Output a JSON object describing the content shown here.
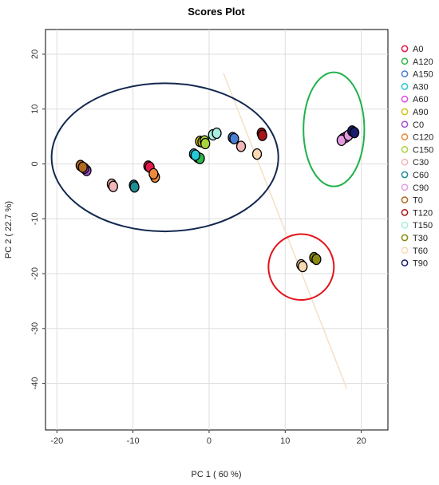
{
  "chart_data": {
    "type": "scatter",
    "title": "Scores Plot",
    "xlabel": "PC 1 ( 60 %)",
    "ylabel": "PC 2 ( 22.7 %)",
    "xlim": [
      -21.5,
      23.5
    ],
    "ylim": [
      -48.5,
      24.5
    ],
    "xticks": [
      -20,
      -10,
      0,
      10,
      20
    ],
    "yticks": [
      20,
      10,
      0,
      -10,
      -20,
      -30,
      -40
    ],
    "grid": true,
    "legend_position": "right",
    "series": [
      {
        "name": "A0",
        "color": "#e6194b",
        "points": [
          [
            -8.0,
            -0.4
          ],
          [
            -7.8,
            -0.6
          ]
        ]
      },
      {
        "name": "A120",
        "color": "#2db84d",
        "points": [
          [
            -1.5,
            1.2
          ],
          [
            -1.2,
            1.0
          ]
        ]
      },
      {
        "name": "A150",
        "color": "#4a7fd4",
        "points": [
          [
            3.1,
            4.8
          ],
          [
            3.3,
            4.6
          ]
        ]
      },
      {
        "name": "A30",
        "color": "#27c9d6",
        "points": [
          [
            -2.0,
            1.8
          ],
          [
            -1.8,
            1.6
          ]
        ]
      },
      {
        "name": "A60",
        "color": "#e14be0",
        "points": [
          [
            17.6,
            4.6
          ],
          [
            18.0,
            4.9
          ]
        ]
      },
      {
        "name": "A90",
        "color": "#d6c51c",
        "points": [
          [
            -1.2,
            4.1
          ],
          [
            -0.9,
            4.0
          ]
        ]
      },
      {
        "name": "C0",
        "color": "#a64ccf",
        "points": [
          [
            -16.1,
            -1.2
          ],
          [
            -16.4,
            -0.8
          ]
        ]
      },
      {
        "name": "C120",
        "color": "#f08b3b",
        "points": [
          [
            -7.1,
            -2.4
          ],
          [
            -7.3,
            -1.8
          ]
        ]
      },
      {
        "name": "C150",
        "color": "#a8d43b",
        "points": [
          [
            -0.6,
            4.2
          ],
          [
            -0.5,
            3.7
          ]
        ]
      },
      {
        "name": "C30",
        "color": "#f2b6b6",
        "points": [
          [
            -12.8,
            -3.7
          ],
          [
            -12.6,
            -4.1
          ],
          [
            4.2,
            3.2
          ]
        ]
      },
      {
        "name": "C60",
        "color": "#1f8e94",
        "points": [
          [
            -9.9,
            -3.9
          ],
          [
            -9.8,
            -4.2
          ]
        ]
      },
      {
        "name": "C90",
        "color": "#e59adf",
        "points": [
          [
            17.4,
            4.3
          ],
          [
            18.3,
            5.2
          ]
        ]
      },
      {
        "name": "T0",
        "color": "#b06a1e",
        "points": [
          [
            -16.9,
            -0.3
          ],
          [
            -16.6,
            -0.6
          ]
        ]
      },
      {
        "name": "T120",
        "color": "#a6161b",
        "points": [
          [
            6.9,
            5.6
          ],
          [
            7.0,
            5.2
          ]
        ]
      },
      {
        "name": "T150",
        "color": "#a8ede0",
        "points": [
          [
            0.5,
            5.3
          ],
          [
            1.0,
            5.6
          ]
        ]
      },
      {
        "name": "T30",
        "color": "#8a8a10",
        "points": [
          [
            13.8,
            -17.1
          ],
          [
            14.1,
            -17.4
          ]
        ]
      },
      {
        "name": "T60",
        "color": "#f9d8b2",
        "points": [
          [
            6.3,
            1.8
          ],
          [
            12.1,
            -18.4
          ],
          [
            12.3,
            -18.7
          ]
        ]
      },
      {
        "name": "T90",
        "color": "#1a1e6b",
        "points": [
          [
            18.8,
            6.0
          ],
          [
            19.1,
            5.7
          ]
        ]
      }
    ],
    "ellipses": [
      {
        "color": "#13284f",
        "center": [
          -5.8,
          1.2
        ],
        "radii": [
          14.9,
          13.5
        ]
      },
      {
        "color": "#1fb24a",
        "center": [
          16.4,
          6.3
        ],
        "radii": [
          4.0,
          10.4
        ]
      },
      {
        "color": "#e3131b",
        "center": [
          12.1,
          -18.8
        ],
        "radii": [
          4.3,
          6.0
        ]
      }
    ],
    "reference_line": {
      "color": "#f7dfc4",
      "from": [
        1.9,
        16.5
      ],
      "to": [
        18.1,
        -41.0
      ]
    }
  }
}
